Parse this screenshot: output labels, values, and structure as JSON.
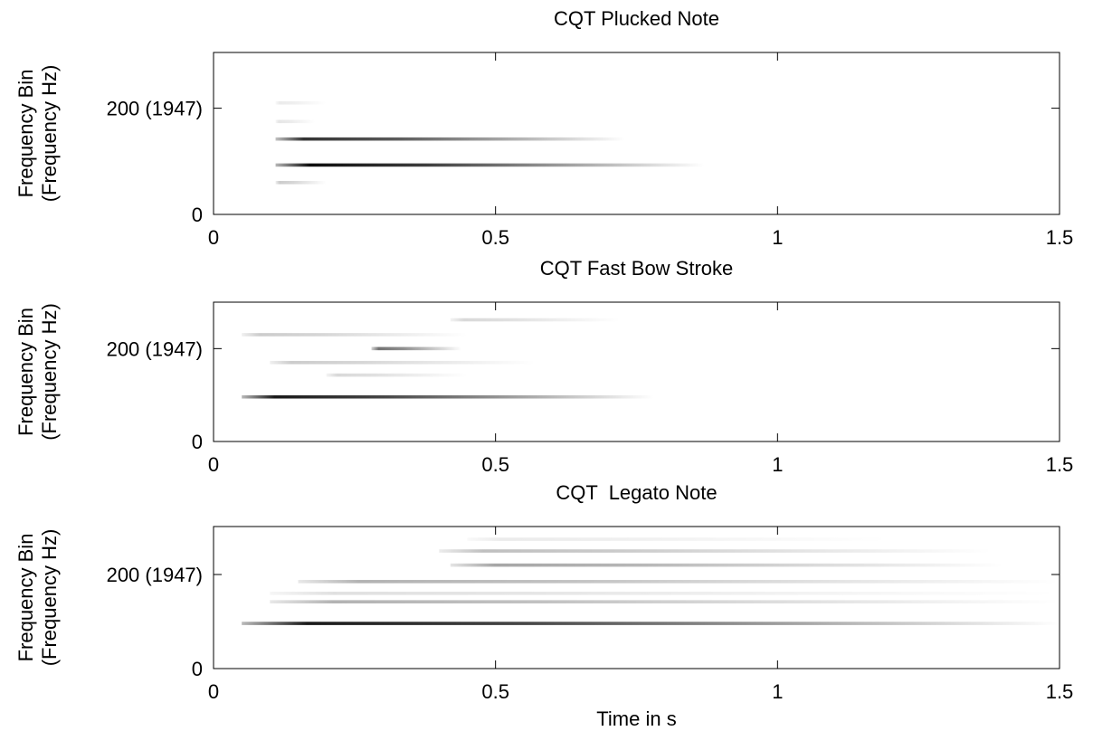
{
  "chart_data": [
    {
      "type": "spectrogram",
      "title": "CQT Plucked Note",
      "ylabel": [
        "Frequency Bin",
        "(Frequency Hz)"
      ],
      "xlim": [
        0,
        1.5
      ],
      "xticks": [
        0,
        0.5,
        1,
        1.5
      ],
      "ylim": [
        0,
        305
      ],
      "yticks": [
        0,
        {
          "value": 200,
          "label": "200 (1947)"
        }
      ],
      "color": "#000000",
      "bands": [
        {
          "bin": 93,
          "start": 0.11,
          "end": 0.87,
          "intensity": 0.95
        },
        {
          "bin": 142,
          "start": 0.11,
          "end": 0.73,
          "intensity": 0.8
        },
        {
          "bin": 60,
          "start": 0.11,
          "end": 0.2,
          "intensity": 0.2
        },
        {
          "bin": 175,
          "start": 0.11,
          "end": 0.18,
          "intensity": 0.1
        },
        {
          "bin": 210,
          "start": 0.11,
          "end": 0.2,
          "intensity": 0.08
        }
      ]
    },
    {
      "type": "spectrogram",
      "title": "CQT Fast Bow Stroke",
      "ylabel": [
        "Frequency Bin",
        "(Frequency Hz)"
      ],
      "xlim": [
        0,
        1.5
      ],
      "xticks": [
        0,
        0.5,
        1,
        1.5
      ],
      "ylim": [
        0,
        300
      ],
      "yticks": [
        0,
        {
          "value": 200,
          "label": "200 (1947)"
        }
      ],
      "color": "#000000",
      "bands": [
        {
          "bin": 96,
          "start": 0.05,
          "end": 0.78,
          "intensity": 0.9
        },
        {
          "bin": 200,
          "start": 0.28,
          "end": 0.44,
          "intensity": 0.55
        },
        {
          "bin": 143,
          "start": 0.2,
          "end": 0.45,
          "intensity": 0.15
        },
        {
          "bin": 170,
          "start": 0.1,
          "end": 0.57,
          "intensity": 0.2
        },
        {
          "bin": 230,
          "start": 0.05,
          "end": 0.45,
          "intensity": 0.2
        },
        {
          "bin": 262,
          "start": 0.42,
          "end": 0.72,
          "intensity": 0.15
        }
      ]
    },
    {
      "type": "spectrogram",
      "title": "CQT  Legato Note",
      "xlabel": "Time in s",
      "ylabel": [
        "Frequency Bin",
        "(Frequency Hz)"
      ],
      "xlim": [
        0,
        1.5
      ],
      "xticks": [
        0,
        0.5,
        1,
        1.5
      ],
      "ylim": [
        0,
        302
      ],
      "yticks": [
        0,
        {
          "value": 200,
          "label": "200 (1947)"
        }
      ],
      "color": "#000000",
      "bands": [
        {
          "bin": 96,
          "start": 0.05,
          "end": 1.5,
          "intensity": 0.9
        },
        {
          "bin": 142,
          "start": 0.1,
          "end": 1.5,
          "intensity": 0.3
        },
        {
          "bin": 160,
          "start": 0.1,
          "end": 1.5,
          "intensity": 0.12
        },
        {
          "bin": 185,
          "start": 0.15,
          "end": 1.5,
          "intensity": 0.3
        },
        {
          "bin": 220,
          "start": 0.42,
          "end": 1.4,
          "intensity": 0.35
        },
        {
          "bin": 250,
          "start": 0.4,
          "end": 1.38,
          "intensity": 0.25
        },
        {
          "bin": 275,
          "start": 0.45,
          "end": 1.2,
          "intensity": 0.08
        }
      ]
    }
  ]
}
